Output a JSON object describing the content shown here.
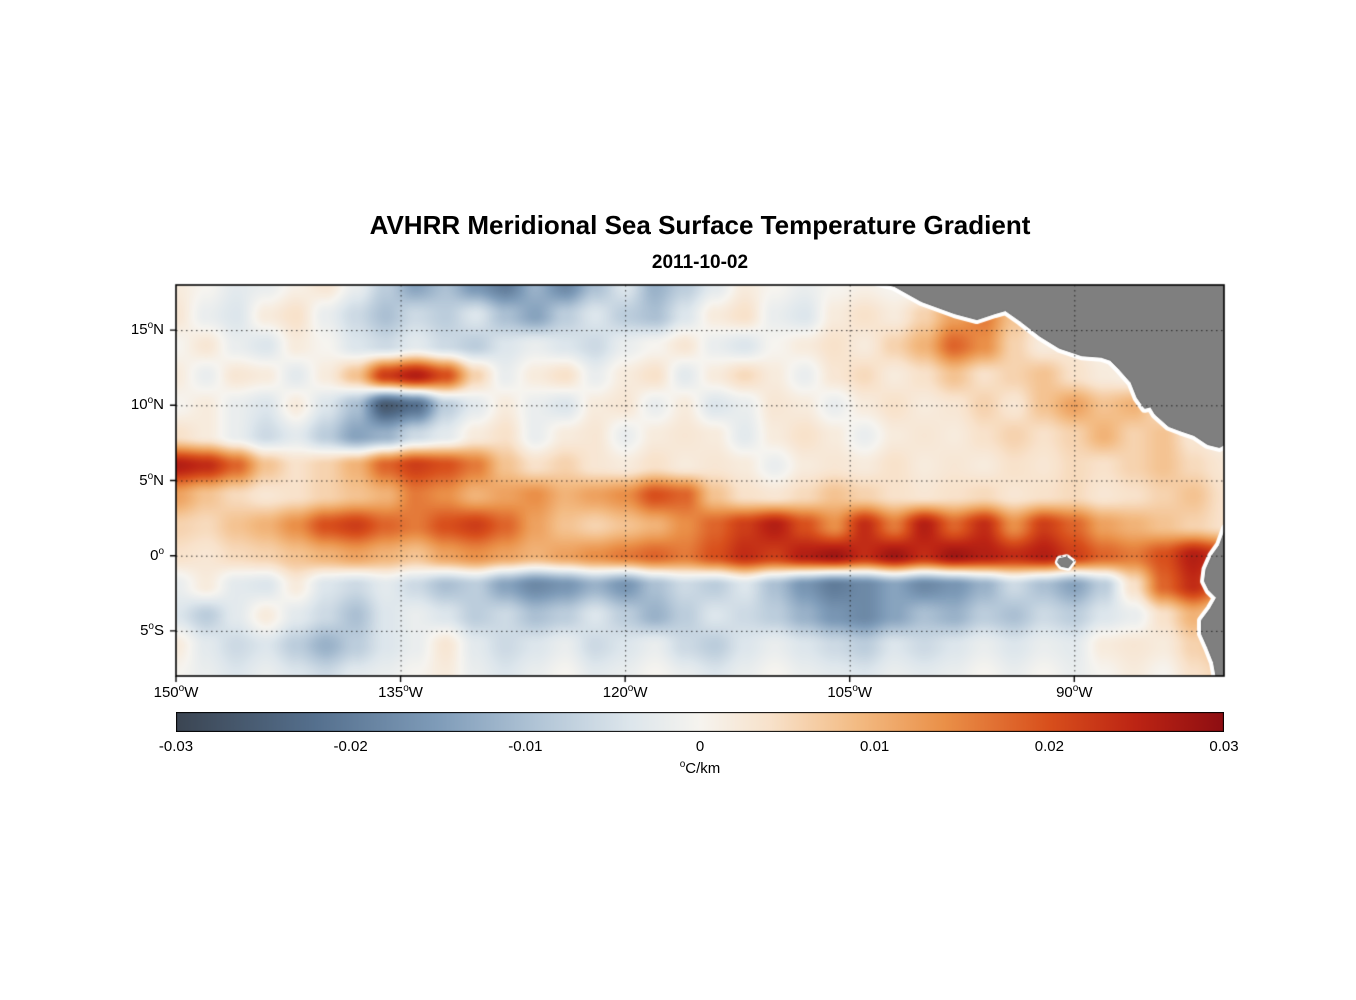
{
  "chart_data": {
    "type": "heatmap",
    "title": "AVHRR Meridional Sea Surface Temperature Gradient",
    "subtitle": "2011-10-02",
    "deg_mark": "o",
    "lon_range_degW": [
      150,
      80
    ],
    "lat_range_degN": [
      18,
      -8
    ],
    "x_ticks": [
      {
        "lon": 150,
        "label": "150",
        "hemi": "W"
      },
      {
        "lon": 135,
        "label": "135",
        "hemi": "W"
      },
      {
        "lon": 120,
        "label": "120",
        "hemi": "W"
      },
      {
        "lon": 105,
        "label": "105",
        "hemi": "W"
      },
      {
        "lon": 90,
        "label": "90",
        "hemi": "W"
      }
    ],
    "y_ticks": [
      {
        "lat": 15,
        "label": "15",
        "hemi": "N"
      },
      {
        "lat": 10,
        "label": "10",
        "hemi": "N"
      },
      {
        "lat": 5,
        "label": "5",
        "hemi": "N"
      },
      {
        "lat": 0,
        "label": "0",
        "hemi": ""
      },
      {
        "lat": -5,
        "label": "5",
        "hemi": "S"
      }
    ],
    "grid_lons": [
      135,
      120,
      105,
      90
    ],
    "grid_lats": [
      15,
      10,
      5,
      0,
      -5
    ],
    "colorbar": {
      "min": -0.03,
      "max": 0.03,
      "ticks": [
        {
          "v": -0.03,
          "label": "-0.03"
        },
        {
          "v": -0.02,
          "label": "-0.02"
        },
        {
          "v": -0.01,
          "label": "-0.01"
        },
        {
          "v": 0,
          "label": "0"
        },
        {
          "v": 0.01,
          "label": "0.01"
        },
        {
          "v": 0.02,
          "label": "0.02"
        },
        {
          "v": 0.03,
          "label": "0.03"
        }
      ],
      "unit_sup": "o",
      "unit_text": "C/km"
    },
    "colormap_stops": [
      [
        -0.03,
        "#3b4552"
      ],
      [
        -0.022,
        "#55708e"
      ],
      [
        -0.015,
        "#7f9cb9"
      ],
      [
        -0.009,
        "#b4c7d8"
      ],
      [
        -0.004,
        "#dde6ec"
      ],
      [
        0.0,
        "#f6f4ef"
      ],
      [
        0.004,
        "#f8e2cb"
      ],
      [
        0.009,
        "#f3bb83"
      ],
      [
        0.014,
        "#ea9048"
      ],
      [
        0.02,
        "#d84f1c"
      ],
      [
        0.025,
        "#bc2414"
      ],
      [
        0.03,
        "#8e0e12"
      ]
    ],
    "land_color": "#7f7f7f",
    "land_edge_color": "#6b6b6b",
    "coast_gap_color": "#ffffff",
    "field": {
      "units": "milli-degC/km (value*0.001 = degC/km)",
      "lon_start_degW": 150,
      "lon_step": 2,
      "lat_start_degN": 18,
      "lat_step": -2,
      "values": [
        [
          2,
          0,
          -3,
          -2,
          1,
          3,
          -2,
          -8,
          -14,
          -10,
          -16,
          -20,
          -12,
          -18,
          -10,
          -4,
          -12,
          -8,
          -3,
          2,
          0,
          -2,
          0,
          1,
          0,
          -1,
          1,
          0,
          1,
          0,
          0,
          1,
          0,
          0,
          0,
          0
        ],
        [
          3,
          -2,
          -4,
          2,
          4,
          -2,
          -6,
          -10,
          -6,
          -8,
          -4,
          -10,
          -14,
          -8,
          -4,
          -8,
          -10,
          -4,
          2,
          4,
          -2,
          -4,
          2,
          4,
          2,
          6,
          12,
          16,
          8,
          2,
          1,
          0,
          1,
          0,
          0,
          0
        ],
        [
          0,
          3,
          -2,
          -4,
          2,
          0,
          -4,
          -6,
          -3,
          -6,
          -8,
          -4,
          -2,
          -4,
          -6,
          -2,
          0,
          3,
          -2,
          -4,
          0,
          2,
          4,
          2,
          6,
          10,
          18,
          14,
          6,
          2,
          3,
          1,
          0,
          0,
          0,
          0
        ],
        [
          2,
          -2,
          3,
          2,
          -3,
          2,
          8,
          22,
          26,
          20,
          6,
          -2,
          2,
          4,
          -2,
          2,
          4,
          -3,
          2,
          5,
          2,
          -2,
          3,
          5,
          2,
          4,
          8,
          4,
          6,
          8,
          4,
          2,
          1,
          0,
          0,
          0
        ],
        [
          0,
          2,
          -2,
          -4,
          2,
          -4,
          -10,
          -26,
          -22,
          -8,
          -3,
          2,
          -2,
          -4,
          2,
          3,
          -2,
          2,
          -4,
          -2,
          3,
          2,
          -2,
          2,
          4,
          2,
          3,
          6,
          3,
          8,
          12,
          8,
          10,
          4,
          1,
          0
        ],
        [
          4,
          2,
          -2,
          -6,
          -3,
          -8,
          -14,
          -12,
          -6,
          -3,
          2,
          4,
          -2,
          2,
          3,
          -2,
          2,
          3,
          2,
          -3,
          2,
          4,
          2,
          -2,
          2,
          3,
          2,
          4,
          6,
          4,
          6,
          10,
          6,
          8,
          3,
          1
        ],
        [
          26,
          24,
          18,
          8,
          4,
          6,
          10,
          18,
          22,
          20,
          16,
          8,
          4,
          6,
          3,
          2,
          4,
          2,
          3,
          2,
          -2,
          2,
          3,
          2,
          4,
          2,
          3,
          2,
          4,
          3,
          5,
          4,
          6,
          8,
          5,
          3
        ],
        [
          12,
          8,
          5,
          3,
          4,
          6,
          8,
          10,
          16,
          14,
          10,
          12,
          14,
          10,
          12,
          14,
          20,
          18,
          8,
          4,
          3,
          5,
          8,
          6,
          4,
          3,
          4,
          5,
          3,
          4,
          5,
          3,
          4,
          6,
          8,
          4
        ],
        [
          6,
          5,
          8,
          10,
          14,
          20,
          22,
          18,
          16,
          20,
          22,
          18,
          12,
          8,
          6,
          8,
          10,
          14,
          18,
          22,
          26,
          20,
          14,
          24,
          16,
          26,
          18,
          24,
          14,
          22,
          18,
          12,
          10,
          8,
          6,
          4
        ],
        [
          4,
          3,
          5,
          6,
          8,
          10,
          12,
          10,
          8,
          12,
          14,
          12,
          10,
          12,
          14,
          16,
          18,
          16,
          20,
          24,
          22,
          26,
          28,
          24,
          28,
          24,
          28,
          26,
          24,
          26,
          22,
          18,
          16,
          20,
          26,
          22
        ],
        [
          -2,
          2,
          -3,
          -4,
          2,
          -4,
          -6,
          -3,
          -6,
          -10,
          -8,
          -14,
          -18,
          -16,
          -12,
          -16,
          -10,
          -6,
          -8,
          -4,
          -10,
          -16,
          -20,
          -18,
          -14,
          -18,
          -16,
          -12,
          -6,
          -10,
          -14,
          -8,
          4,
          18,
          24,
          16
        ],
        [
          -4,
          -8,
          -3,
          2,
          -3,
          -6,
          -10,
          -4,
          -2,
          -4,
          -8,
          -6,
          -10,
          -8,
          -4,
          -8,
          -12,
          -8,
          -4,
          -6,
          -8,
          -12,
          -16,
          -18,
          -14,
          -10,
          -12,
          -8,
          -10,
          -6,
          -8,
          -4,
          -2,
          4,
          10,
          6
        ],
        [
          2,
          -3,
          -6,
          -4,
          -8,
          -12,
          -8,
          -4,
          -2,
          3,
          -3,
          -6,
          -4,
          -2,
          -6,
          -4,
          -2,
          -6,
          -8,
          -4,
          -2,
          -4,
          -6,
          -8,
          -4,
          -6,
          -4,
          -2,
          -4,
          -2,
          -3,
          2,
          3,
          2,
          6,
          8
        ],
        [
          0,
          -2,
          -4,
          -2,
          -4,
          -6,
          -3,
          -2,
          0,
          2,
          -2,
          -4,
          -2,
          0,
          -3,
          -2,
          0,
          -2,
          -4,
          -2,
          0,
          -2,
          -3,
          -4,
          -2,
          -3,
          -2,
          0,
          -2,
          0,
          -2,
          0,
          2,
          0,
          4,
          6
        ]
      ]
    },
    "land_polygons": {
      "central_america": [
        [
          106.0,
          18.6
        ],
        [
          104.7,
          18.9
        ],
        [
          103.6,
          18.3
        ],
        [
          102.0,
          17.9
        ],
        [
          100.2,
          16.9
        ],
        [
          98.0,
          16.1
        ],
        [
          96.5,
          15.7
        ],
        [
          95.3,
          16.1
        ],
        [
          94.6,
          16.3
        ],
        [
          93.6,
          15.6
        ],
        [
          92.3,
          14.6
        ],
        [
          91.0,
          13.8
        ],
        [
          89.5,
          13.3
        ],
        [
          88.2,
          13.2
        ],
        [
          87.6,
          13.0
        ],
        [
          87.0,
          12.4
        ],
        [
          86.2,
          11.5
        ],
        [
          85.8,
          10.5
        ],
        [
          85.3,
          9.8
        ],
        [
          84.9,
          9.9
        ],
        [
          84.6,
          9.4
        ],
        [
          83.7,
          8.6
        ],
        [
          82.9,
          8.3
        ],
        [
          82.0,
          8.0
        ],
        [
          81.1,
          7.4
        ],
        [
          80.3,
          7.2
        ],
        [
          79.6,
          7.6
        ],
        [
          79.2,
          8.2
        ],
        [
          78.6,
          8.6
        ],
        [
          78.0,
          9.5
        ],
        [
          78.0,
          19.5
        ],
        [
          106.0,
          19.5
        ]
      ],
      "south_america": [
        [
          79.9,
          1.8
        ],
        [
          80.3,
          0.7
        ],
        [
          80.8,
          0.0
        ],
        [
          81.2,
          -0.9
        ],
        [
          81.3,
          -1.7
        ],
        [
          81.0,
          -2.3
        ],
        [
          80.5,
          -2.8
        ],
        [
          80.9,
          -3.5
        ],
        [
          81.5,
          -4.3
        ],
        [
          81.5,
          -5.2
        ],
        [
          81.1,
          -6.1
        ],
        [
          80.7,
          -7.1
        ],
        [
          80.5,
          -8.2
        ],
        [
          80.4,
          -8.8
        ],
        [
          77.0,
          -8.8
        ],
        [
          77.0,
          1.8
        ]
      ],
      "galapagos": [
        [
          91.0,
          -0.2
        ],
        [
          90.5,
          -0.1
        ],
        [
          90.1,
          -0.4
        ],
        [
          90.4,
          -0.8
        ],
        [
          90.9,
          -0.7
        ],
        [
          91.1,
          -0.45
        ]
      ]
    }
  }
}
